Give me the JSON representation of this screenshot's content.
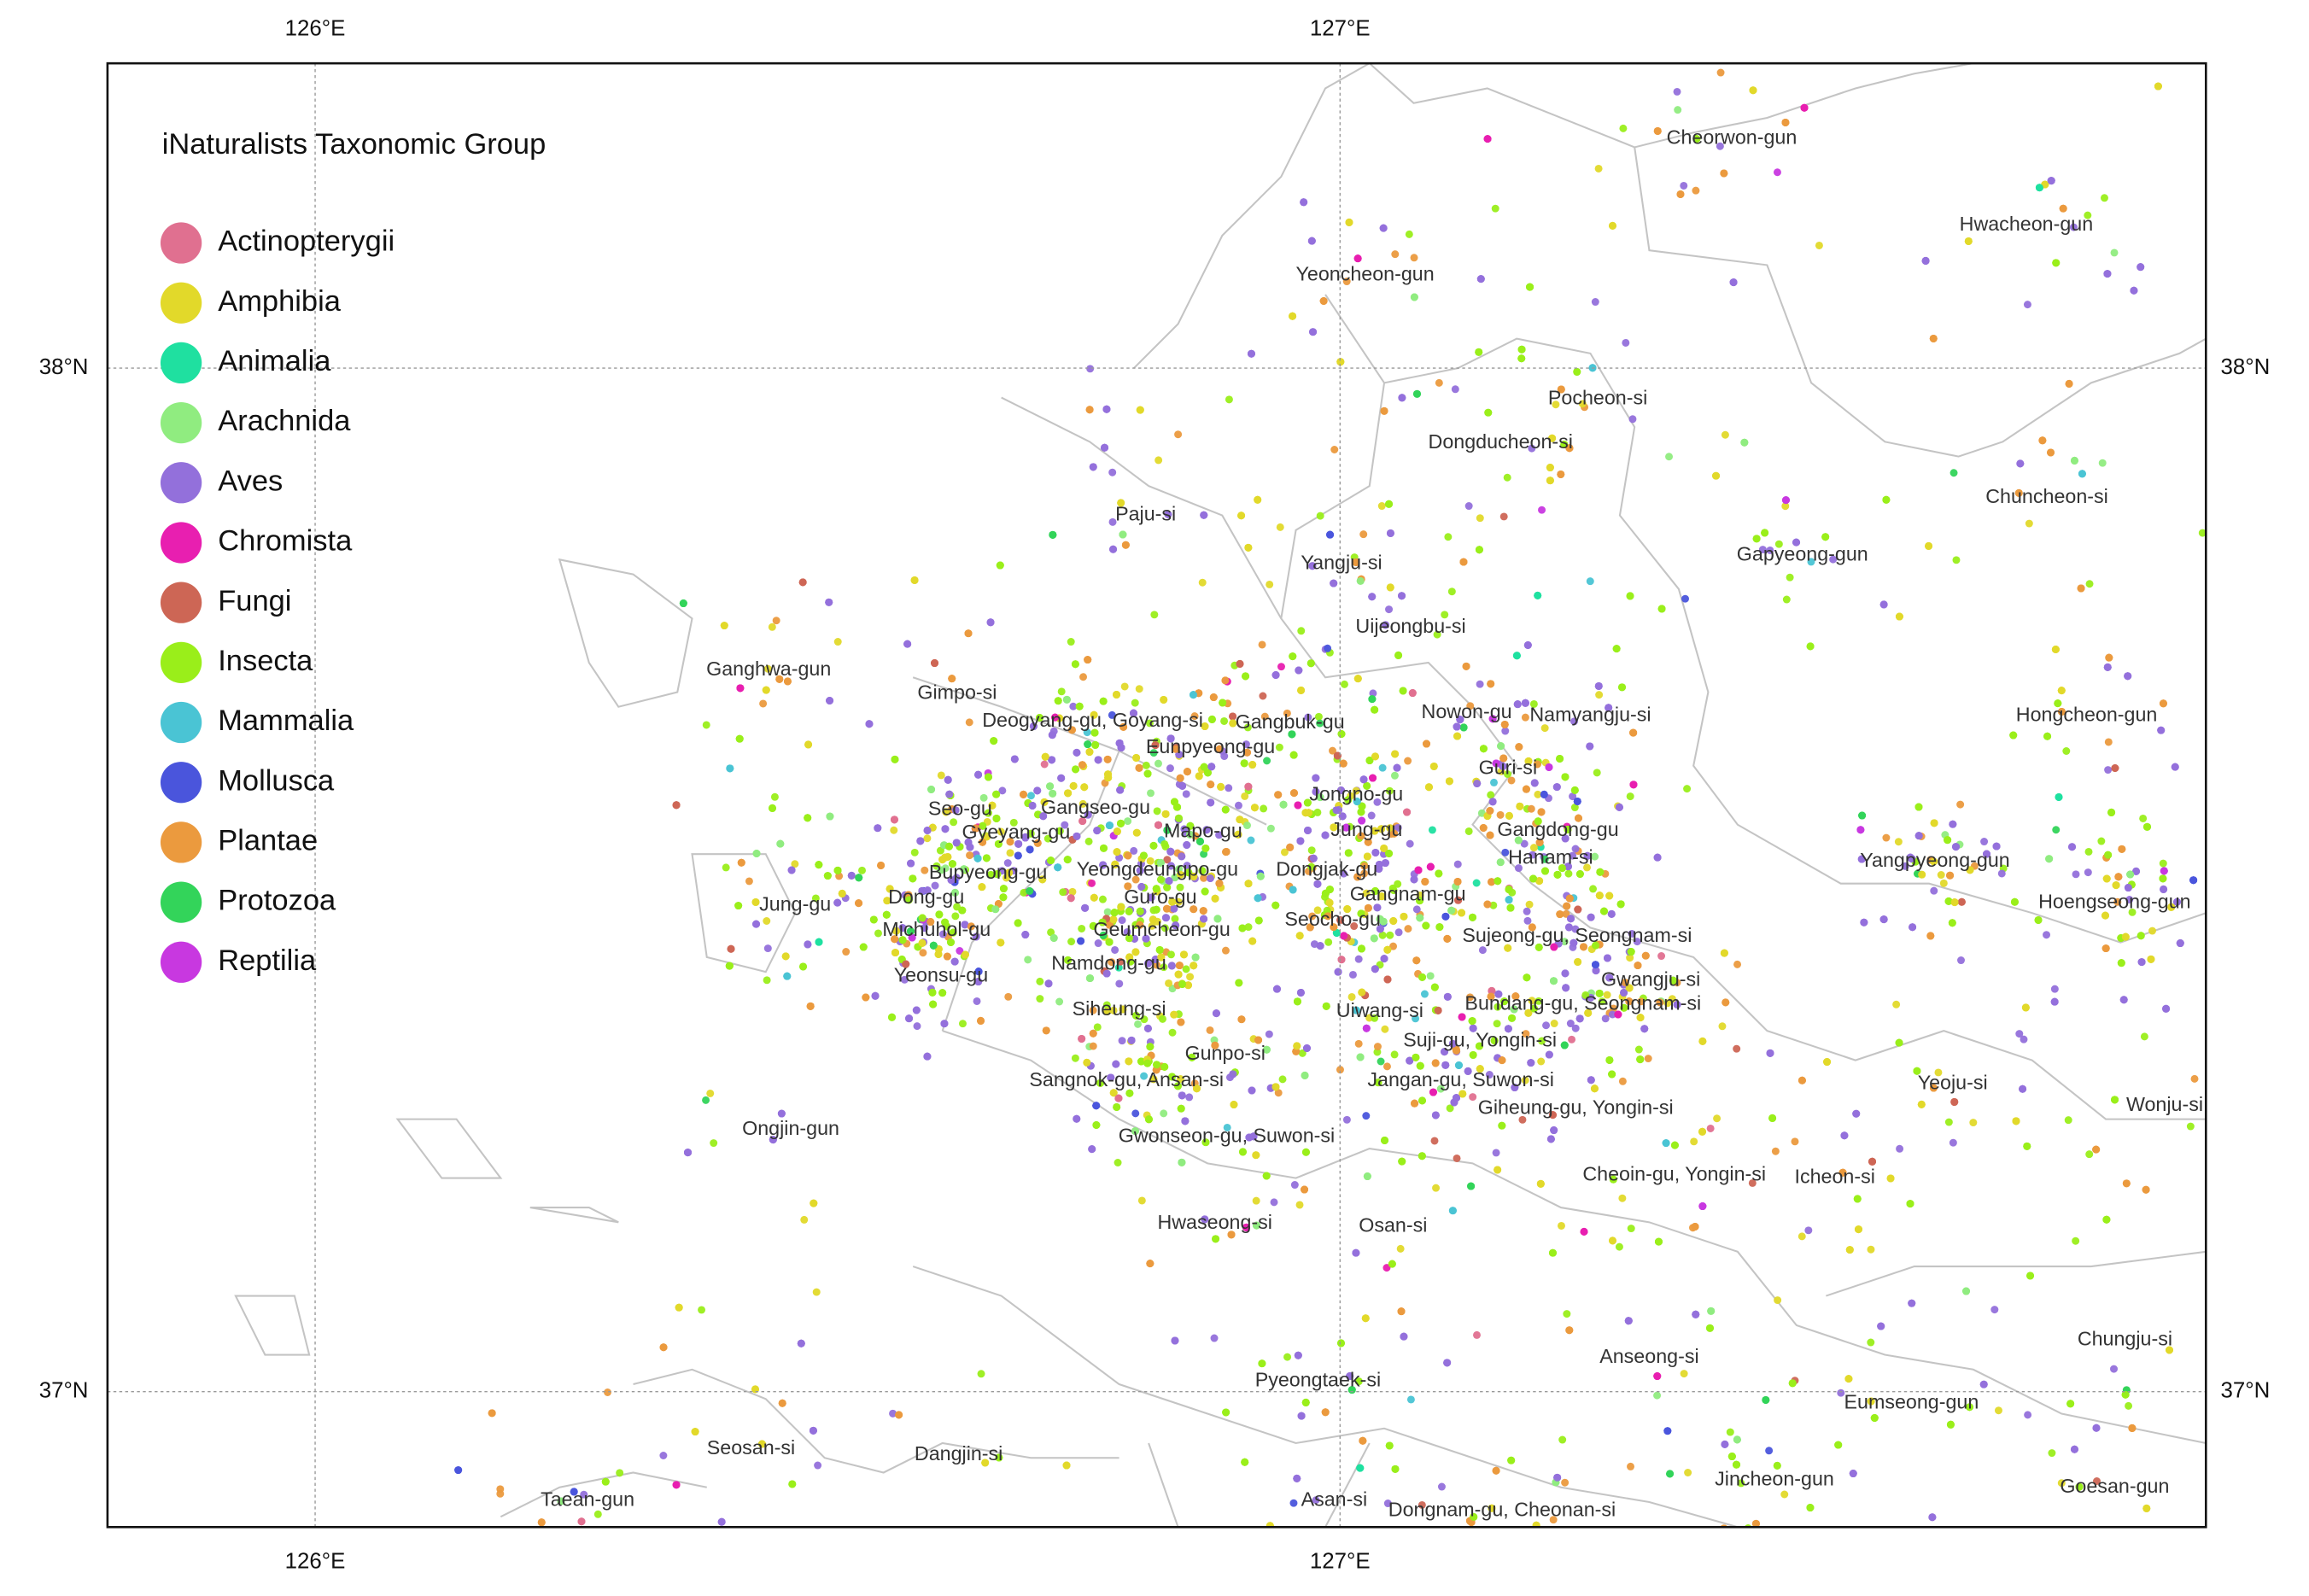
{
  "legend": {
    "title": "iNaturalists Taxonomic Group",
    "items": [
      {
        "name": "Actinopterygii",
        "color": "#e07090"
      },
      {
        "name": "Amphibia",
        "color": "#e2d92a"
      },
      {
        "name": "Animalia",
        "color": "#1fe0a0"
      },
      {
        "name": "Arachnida",
        "color": "#90ec80"
      },
      {
        "name": "Aves",
        "color": "#9370db"
      },
      {
        "name": "Chromista",
        "color": "#e81fb0"
      },
      {
        "name": "Fungi",
        "color": "#cd6655"
      },
      {
        "name": "Insecta",
        "color": "#9aee1a"
      },
      {
        "name": "Mammalia",
        "color": "#4ac4d4"
      },
      {
        "name": "Mollusca",
        "color": "#4a55dc"
      },
      {
        "name": "Plantae",
        "color": "#eb9a3e"
      },
      {
        "name": "Protozoa",
        "color": "#33d45a"
      },
      {
        "name": "Reptilia",
        "color": "#c838e0"
      }
    ]
  },
  "axes": {
    "longitude_labels": [
      "126°E",
      "127°E"
    ],
    "latitude_labels": [
      "38°N",
      "37°N"
    ]
  },
  "places": [
    "Cheorwon-gun",
    "Hwacheon-gun",
    "Yeoncheon-gun",
    "Pocheon-si",
    "Dongducheon-si",
    "Chuncheon-si",
    "Paju-si",
    "Yangju-si",
    "Gapyeong-gun",
    "Uijeongbu-si",
    "Ganghwa-gun",
    "Gimpo-si",
    "Nowon-gu",
    "Namyangju-si",
    "Hongcheon-gun",
    "Deogyang-gu, Goyang-si",
    "Gangbuk-gu",
    "Eunpyeong-gu",
    "Guri-si",
    "Jongno-gu",
    "Seo-gu",
    "Gangseo-gu",
    "Gyeyang-gu",
    "Mapo-gu",
    "Jung-gu",
    "Gangdong-gu",
    "Hanam-si",
    "Yangpyeong-gun",
    "Bupyeong-gu",
    "Yeongdeungpo-gu",
    "Dongjak-gu",
    "Dong-gu",
    "Jung-gu",
    "Guro-gu",
    "Gangnam-gu",
    "Hoengseong-gun",
    "Michuhol-gu",
    "Geumcheon-gu",
    "Seocho-gu",
    "Sujeong-gu, Seongnam-si",
    "Yeonsu-gu",
    "Namdong-gu",
    "Gwangju-si",
    "Siheung-si",
    "Uiwang-si",
    "Bundang-gu, Seongnam-si",
    "Gunpo-si",
    "Suji-gu, Yongin-si",
    "Sangnok-gu, Ansan-si",
    "Jangan-gu, Suwon-si",
    "Yeoju-si",
    "Wonju-si",
    "Giheung-gu, Yongin-si",
    "Ongjin-gun",
    "Gwonseon-gu, Suwon-si",
    "Cheoin-gu, Yongin-si",
    "Icheon-si",
    "Hwaseong-si",
    "Osan-si",
    "Chungju-si",
    "Anseong-si",
    "Pyeongtaek-si",
    "Eumseong-gun",
    "Seosan-si",
    "Dangjin-si",
    "Jincheon-gun",
    "Goesan-gun",
    "Taean-gun",
    "Asan-si",
    "Dongnam-gu, Cheonan-si"
  ]
}
